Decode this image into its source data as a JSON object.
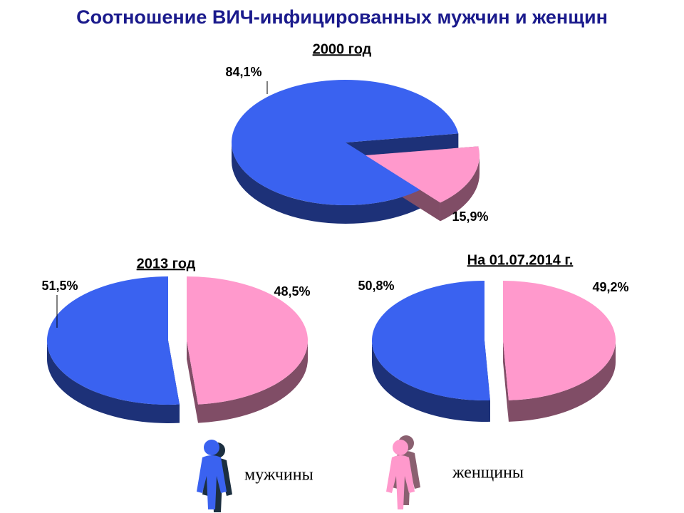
{
  "title": "Соотношение ВИЧ-инфицированных мужчин и женщин",
  "legend": {
    "labels": [
      "мужчины",
      "женщины"
    ],
    "colors": [
      "#3a62f0",
      "#ff99cc"
    ]
  },
  "chart_data": [
    {
      "type": "pie",
      "title": "2000 год",
      "values": [
        84.1,
        15.9
      ],
      "value_labels": [
        "84,1%",
        "15,9%"
      ]
    },
    {
      "type": "pie",
      "title": "2013 год",
      "values": [
        51.5,
        48.5
      ],
      "value_labels": [
        "51,5%",
        "48,5%"
      ]
    },
    {
      "type": "pie",
      "title": "На 01.07.2014 г.",
      "values": [
        50.8,
        49.2
      ],
      "value_labels": [
        "50,8%",
        "49,2%"
      ]
    }
  ]
}
